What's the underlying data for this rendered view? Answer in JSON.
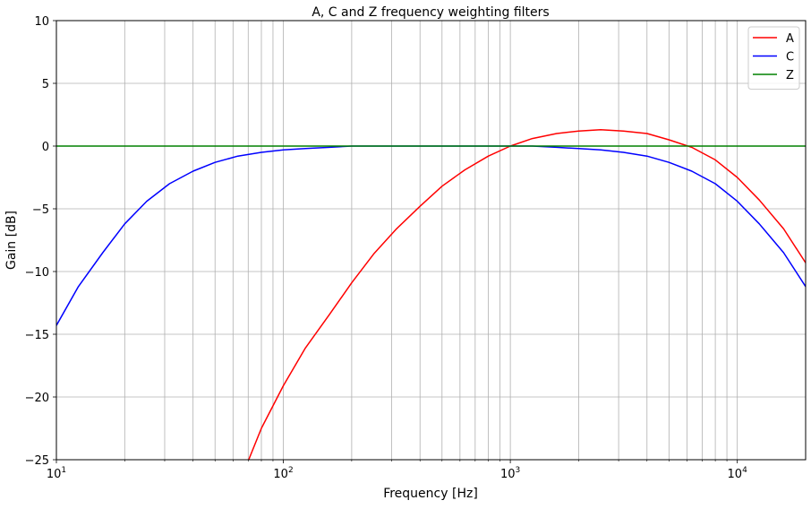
{
  "chart_data": {
    "type": "line",
    "title": "A, C and Z frequency weighting filters",
    "xlabel": "Frequency [Hz]",
    "ylabel": "Gain [dB]",
    "xscale": "log",
    "xlim": [
      10,
      20000
    ],
    "ylim": [
      -25,
      10
    ],
    "yticks": [
      -25,
      -20,
      -15,
      -10,
      -5,
      0,
      5,
      10
    ],
    "ytick_labels": [
      "−25",
      "−20",
      "−15",
      "−10",
      "−5",
      "0",
      "5",
      "10"
    ],
    "xticks": [
      {
        "value": 10,
        "base": "10",
        "exp": "1"
      },
      {
        "value": 100,
        "base": "10",
        "exp": "2"
      },
      {
        "value": 1000,
        "base": "10",
        "exp": "3"
      },
      {
        "value": 10000,
        "base": "10",
        "exp": "4"
      }
    ],
    "grid": "major and minor, both axes",
    "legend_position": "top-right",
    "series": [
      {
        "name": "A",
        "color": "#ff0000",
        "x": [
          70,
          80,
          100,
          125,
          160,
          200,
          250,
          315,
          400,
          500,
          630,
          800,
          1000,
          1250,
          1600,
          2000,
          2500,
          3150,
          4000,
          5000,
          6300,
          8000,
          10000,
          12500,
          16000,
          20000
        ],
        "y": [
          -25.1,
          -22.5,
          -19.1,
          -16.1,
          -13.4,
          -10.9,
          -8.6,
          -6.6,
          -4.8,
          -3.2,
          -1.9,
          -0.8,
          0.0,
          0.6,
          1.0,
          1.2,
          1.3,
          1.2,
          1.0,
          0.5,
          -0.1,
          -1.1,
          -2.5,
          -4.3,
          -6.6,
          -9.3
        ]
      },
      {
        "name": "C",
        "color": "#0000ff",
        "x": [
          10,
          12.5,
          16,
          20,
          25,
          31.5,
          40,
          50,
          63,
          80,
          100,
          125,
          160,
          200,
          250,
          315,
          400,
          500,
          630,
          800,
          1000,
          1250,
          1600,
          2000,
          2500,
          3150,
          4000,
          5000,
          6300,
          8000,
          10000,
          12500,
          16000,
          20000
        ],
        "y": [
          -14.3,
          -11.2,
          -8.5,
          -6.2,
          -4.4,
          -3.0,
          -2.0,
          -1.3,
          -0.8,
          -0.5,
          -0.3,
          -0.2,
          -0.1,
          0.0,
          0.0,
          0.0,
          0.0,
          0.0,
          0.0,
          0.0,
          0.0,
          0.0,
          -0.1,
          -0.2,
          -0.3,
          -0.5,
          -0.8,
          -1.3,
          -2.0,
          -3.0,
          -4.4,
          -6.2,
          -8.5,
          -11.2
        ]
      },
      {
        "name": "Z",
        "color": "#008000",
        "x": [
          10,
          20000
        ],
        "y": [
          0,
          0
        ]
      }
    ]
  }
}
